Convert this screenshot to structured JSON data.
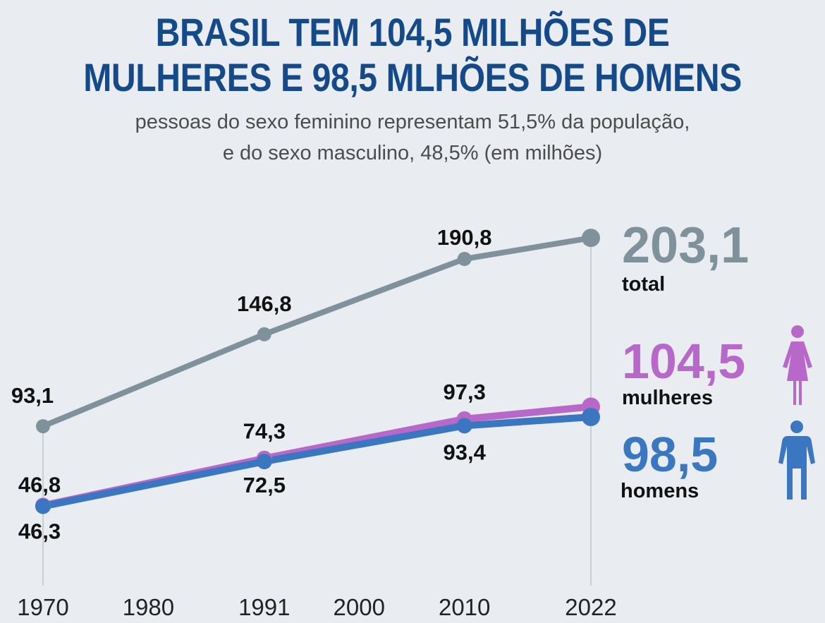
{
  "title_line1": "BRASIL TEM 104,5 MILHÕES DE",
  "title_line2": "MULHERES E 98,5 MLHÕES DE HOMENS",
  "subtitle_line1": "pessoas do sexo feminino representam 51,5% da população,",
  "subtitle_line2": "e do sexo masculino, 48,5% (em milhões)",
  "colors": {
    "title": "#154a8a",
    "total": "#7f929c",
    "women": "#b868c8",
    "men": "#3a77c0",
    "background": "#e9edf1"
  },
  "chart_data": {
    "type": "line",
    "x": [
      1970,
      1991,
      2010,
      2022
    ],
    "x_ticks": [
      "1970",
      "1980",
      "1991",
      "2000",
      "2010",
      "2022"
    ],
    "xlim": [
      1970,
      2022
    ],
    "ylim": [
      0,
      210
    ],
    "grid": false,
    "legend_position": "right",
    "series": [
      {
        "key": "total",
        "values": [
          93.1,
          146.8,
          190.8,
          203.1
        ],
        "labels": [
          "93,1",
          "146,8",
          "190,8",
          null
        ]
      },
      {
        "key": "women",
        "values": [
          46.8,
          74.3,
          97.3,
          104.5
        ],
        "labels": [
          "46,8",
          "74,3",
          "97,3",
          null
        ]
      },
      {
        "key": "men",
        "values": [
          46.3,
          72.5,
          93.4,
          98.5
        ],
        "labels": [
          "46,3",
          "72,5",
          "93,4",
          null
        ]
      }
    ]
  },
  "legend": [
    {
      "key": "total",
      "value": "203,1",
      "label": "total",
      "icon": "none"
    },
    {
      "key": "women",
      "value": "104,5",
      "label": "mulheres",
      "icon": "woman-icon"
    },
    {
      "key": "men",
      "value": "98,5",
      "label": "homens",
      "icon": "man-icon"
    }
  ]
}
